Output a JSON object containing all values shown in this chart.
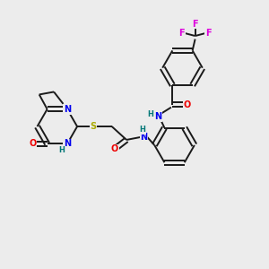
{
  "background_color": "#ececec",
  "bond_color": "#1a1a1a",
  "atom_colors": {
    "N": "#0000ee",
    "O": "#ee0000",
    "S": "#aaaa00",
    "F": "#dd00dd",
    "H": "#007777",
    "C": "#1a1a1a"
  },
  "figsize": [
    3.0,
    3.0
  ],
  "dpi": 100
}
